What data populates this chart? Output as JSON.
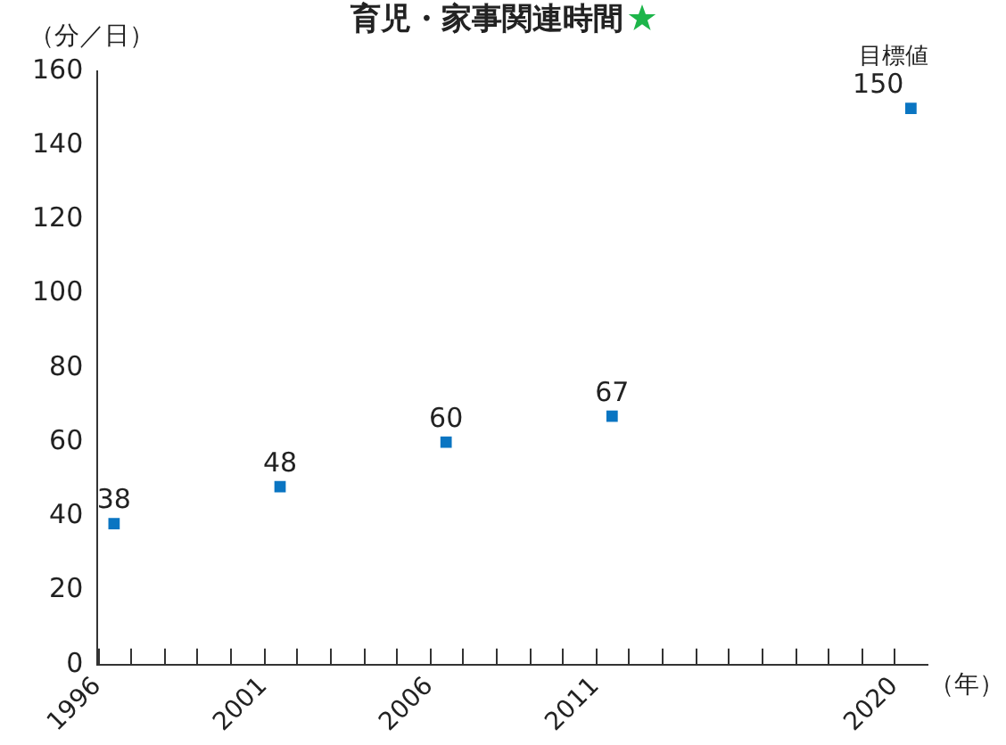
{
  "chart_data": {
    "type": "scatter",
    "title": "育児・家事関連時間",
    "ylabel": "（分／日）",
    "xlabel": "（年）",
    "x": [
      1996.5,
      2001.5,
      2006.5,
      2011.5,
      2020.5
    ],
    "values": [
      38,
      48,
      60,
      67,
      150
    ],
    "color": "#0a75c2",
    "marker": "square",
    "data_labels": true,
    "grid": false,
    "legend": false,
    "annotations": [
      {
        "text": "目標値",
        "x": 2020.5,
        "y": 150
      }
    ],
    "xlim": [
      1996,
      2021
    ],
    "xticks": [
      1996,
      {
        "value": 1997,
        "label": null
      },
      {
        "value": 1998,
        "label": null
      },
      {
        "value": 1999,
        "label": null
      },
      {
        "value": 2000,
        "label": null
      },
      2001,
      {
        "value": 2002,
        "label": null
      },
      {
        "value": 2003,
        "label": null
      },
      {
        "value": 2004,
        "label": null
      },
      {
        "value": 2005,
        "label": null
      },
      2006,
      {
        "value": 2007,
        "label": null
      },
      {
        "value": 2008,
        "label": null
      },
      {
        "value": 2009,
        "label": null
      },
      {
        "value": 2010,
        "label": null
      },
      2011,
      {
        "value": 2012,
        "label": null
      },
      {
        "value": 2013,
        "label": null
      },
      {
        "value": 2014,
        "label": null
      },
      {
        "value": 2015,
        "label": null
      },
      {
        "value": 2016,
        "label": null
      },
      {
        "value": 2017,
        "label": null
      },
      {
        "value": 2018,
        "label": null
      },
      {
        "value": 2019,
        "label": null
      },
      2020
    ],
    "ylim": [
      0,
      160
    ],
    "yticks": [
      0,
      20,
      40,
      60,
      80,
      100,
      120,
      140,
      160
    ]
  }
}
